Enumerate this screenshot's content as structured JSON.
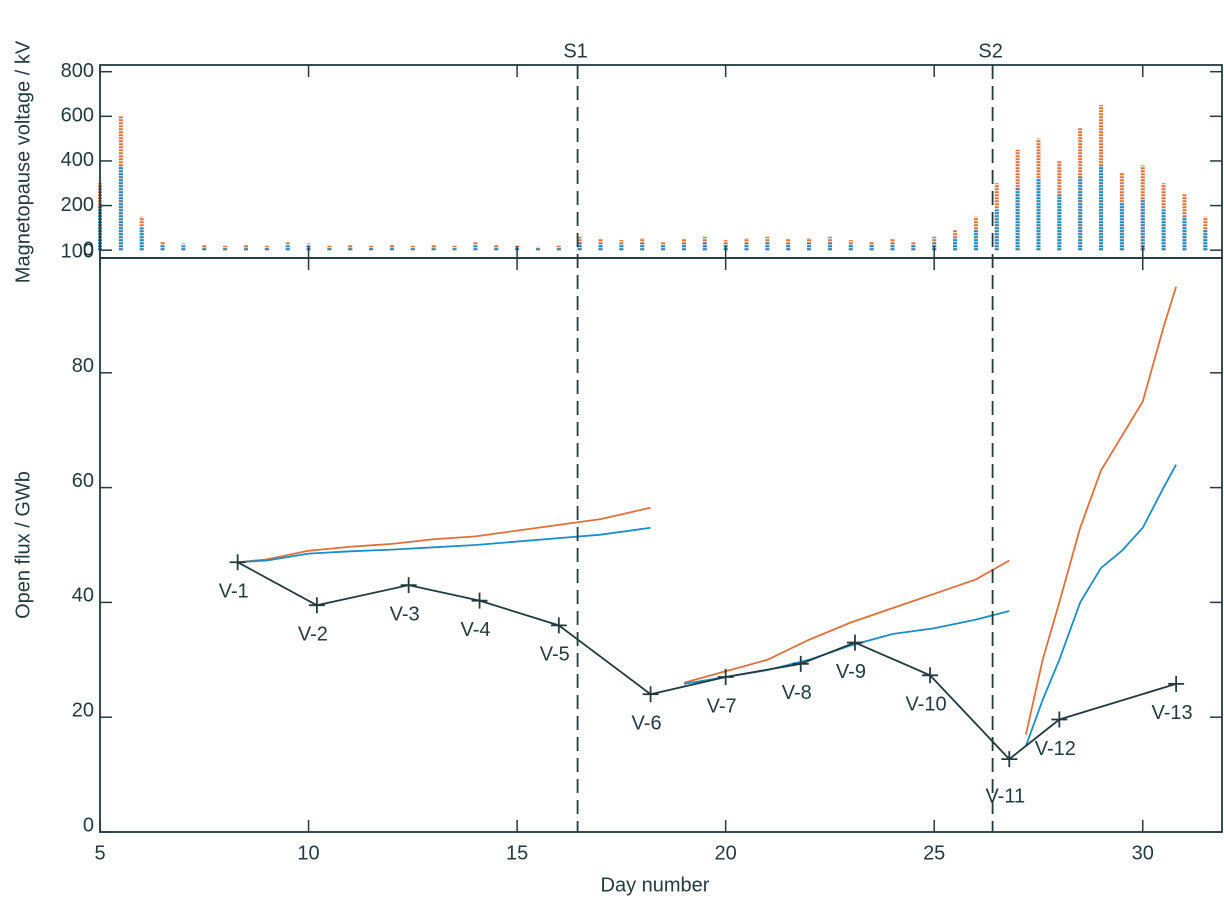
{
  "chart_data": [
    {
      "type": "scatter",
      "ylabel": "Magnetopause voltage / kV",
      "xlim": [
        5,
        31.9
      ],
      "ylim": [
        -35,
        830
      ],
      "yticks": [
        0,
        200,
        400,
        600,
        800
      ],
      "x": [
        5,
        5.5,
        6,
        6.5,
        7,
        7.5,
        8,
        8.5,
        9,
        9.5,
        10,
        10.5,
        11,
        11.5,
        12,
        12.5,
        13,
        13.5,
        14,
        14.5,
        15,
        15.5,
        16,
        16.5,
        17,
        17.5,
        18,
        18.5,
        19,
        19.5,
        20,
        20.5,
        21,
        21.5,
        22,
        22.5,
        23,
        23.5,
        24,
        24.5,
        25,
        25.5,
        26,
        26.5,
        27,
        27.5,
        28,
        28.5,
        29,
        29.5,
        30,
        30.5,
        31,
        31.5
      ],
      "series": [
        {
          "color": "#e0703a",
          "values": [
            300,
            600,
            150,
            40,
            30,
            25,
            20,
            25,
            20,
            35,
            30,
            20,
            25,
            20,
            25,
            20,
            25,
            20,
            35,
            25,
            20,
            15,
            20,
            60,
            50,
            45,
            55,
            35,
            50,
            60,
            45,
            55,
            60,
            50,
            55,
            60,
            45,
            40,
            50,
            35,
            60,
            90,
            150,
            300,
            450,
            500,
            400,
            550,
            650,
            350,
            380,
            300,
            250,
            150
          ]
        },
        {
          "color": "#1a8ec9",
          "values": [
            200,
            380,
            100,
            25,
            18,
            15,
            12,
            15,
            12,
            20,
            18,
            12,
            15,
            12,
            15,
            12,
            15,
            12,
            20,
            15,
            12,
            10,
            12,
            35,
            30,
            28,
            32,
            22,
            30,
            35,
            28,
            32,
            35,
            30,
            32,
            35,
            28,
            25,
            30,
            22,
            35,
            55,
            90,
            180,
            280,
            320,
            250,
            330,
            380,
            210,
            230,
            180,
            150,
            90
          ]
        }
      ]
    },
    {
      "type": "line",
      "xlabel": "Day number",
      "ylabel": "Open flux / GWb",
      "xlim": [
        5,
        31.9
      ],
      "ylim": [
        0,
        100
      ],
      "xticks": [
        5,
        10,
        15,
        20,
        25,
        30
      ],
      "yticks": [
        0,
        20,
        40,
        60,
        80,
        100
      ],
      "x": [
        8.3,
        9,
        10,
        11,
        12,
        13,
        14,
        15,
        16,
        17,
        18.2,
        18.2,
        19,
        20,
        21,
        22,
        23,
        24,
        25,
        26,
        26.8,
        26.8,
        27.2,
        27.6,
        28,
        28.5,
        29,
        29.5,
        30,
        30.5,
        30.8
      ],
      "series": [
        {
          "color": "#e0703a",
          "values": [
            47,
            47.5,
            49,
            49.7,
            50.2,
            51,
            51.5,
            52.5,
            53.5,
            54.5,
            56.5,
            null,
            26,
            28,
            30,
            33.5,
            36.5,
            39,
            41.5,
            44,
            47.3,
            null,
            17,
            30,
            40,
            53,
            63,
            69,
            75,
            88,
            95
          ]
        },
        {
          "color": "#1a8ec9",
          "values": [
            47,
            47.3,
            48.5,
            48.9,
            49.2,
            49.6,
            50,
            50.6,
            51.2,
            51.8,
            53,
            null,
            25.8,
            27,
            28.2,
            30,
            32.5,
            34.5,
            35.5,
            37,
            38.5,
            null,
            15,
            23,
            30,
            40,
            46,
            49,
            53,
            60,
            64
          ]
        }
      ],
      "points": {
        "color": "#233a3e",
        "x": [
          8.3,
          10.2,
          12.4,
          14.1,
          16,
          18.2,
          20,
          21.8,
          23.1,
          24.9,
          26.8,
          28,
          30.8
        ],
        "values": [
          47,
          39.5,
          43,
          40.3,
          36,
          24,
          27,
          29.3,
          33,
          27.3,
          12.7,
          19.6,
          25.8
        ],
        "labels": [
          "V-1",
          "V-2",
          "V-3",
          "V-4",
          "V-5",
          "V-6",
          "V-7",
          "V-8",
          "V-9",
          "V-10",
          "V-11",
          "V-12",
          "V-13"
        ]
      },
      "vlines": [
        {
          "x": 16.45,
          "label": "S1"
        },
        {
          "x": 26.4,
          "label": "S2"
        }
      ]
    }
  ]
}
